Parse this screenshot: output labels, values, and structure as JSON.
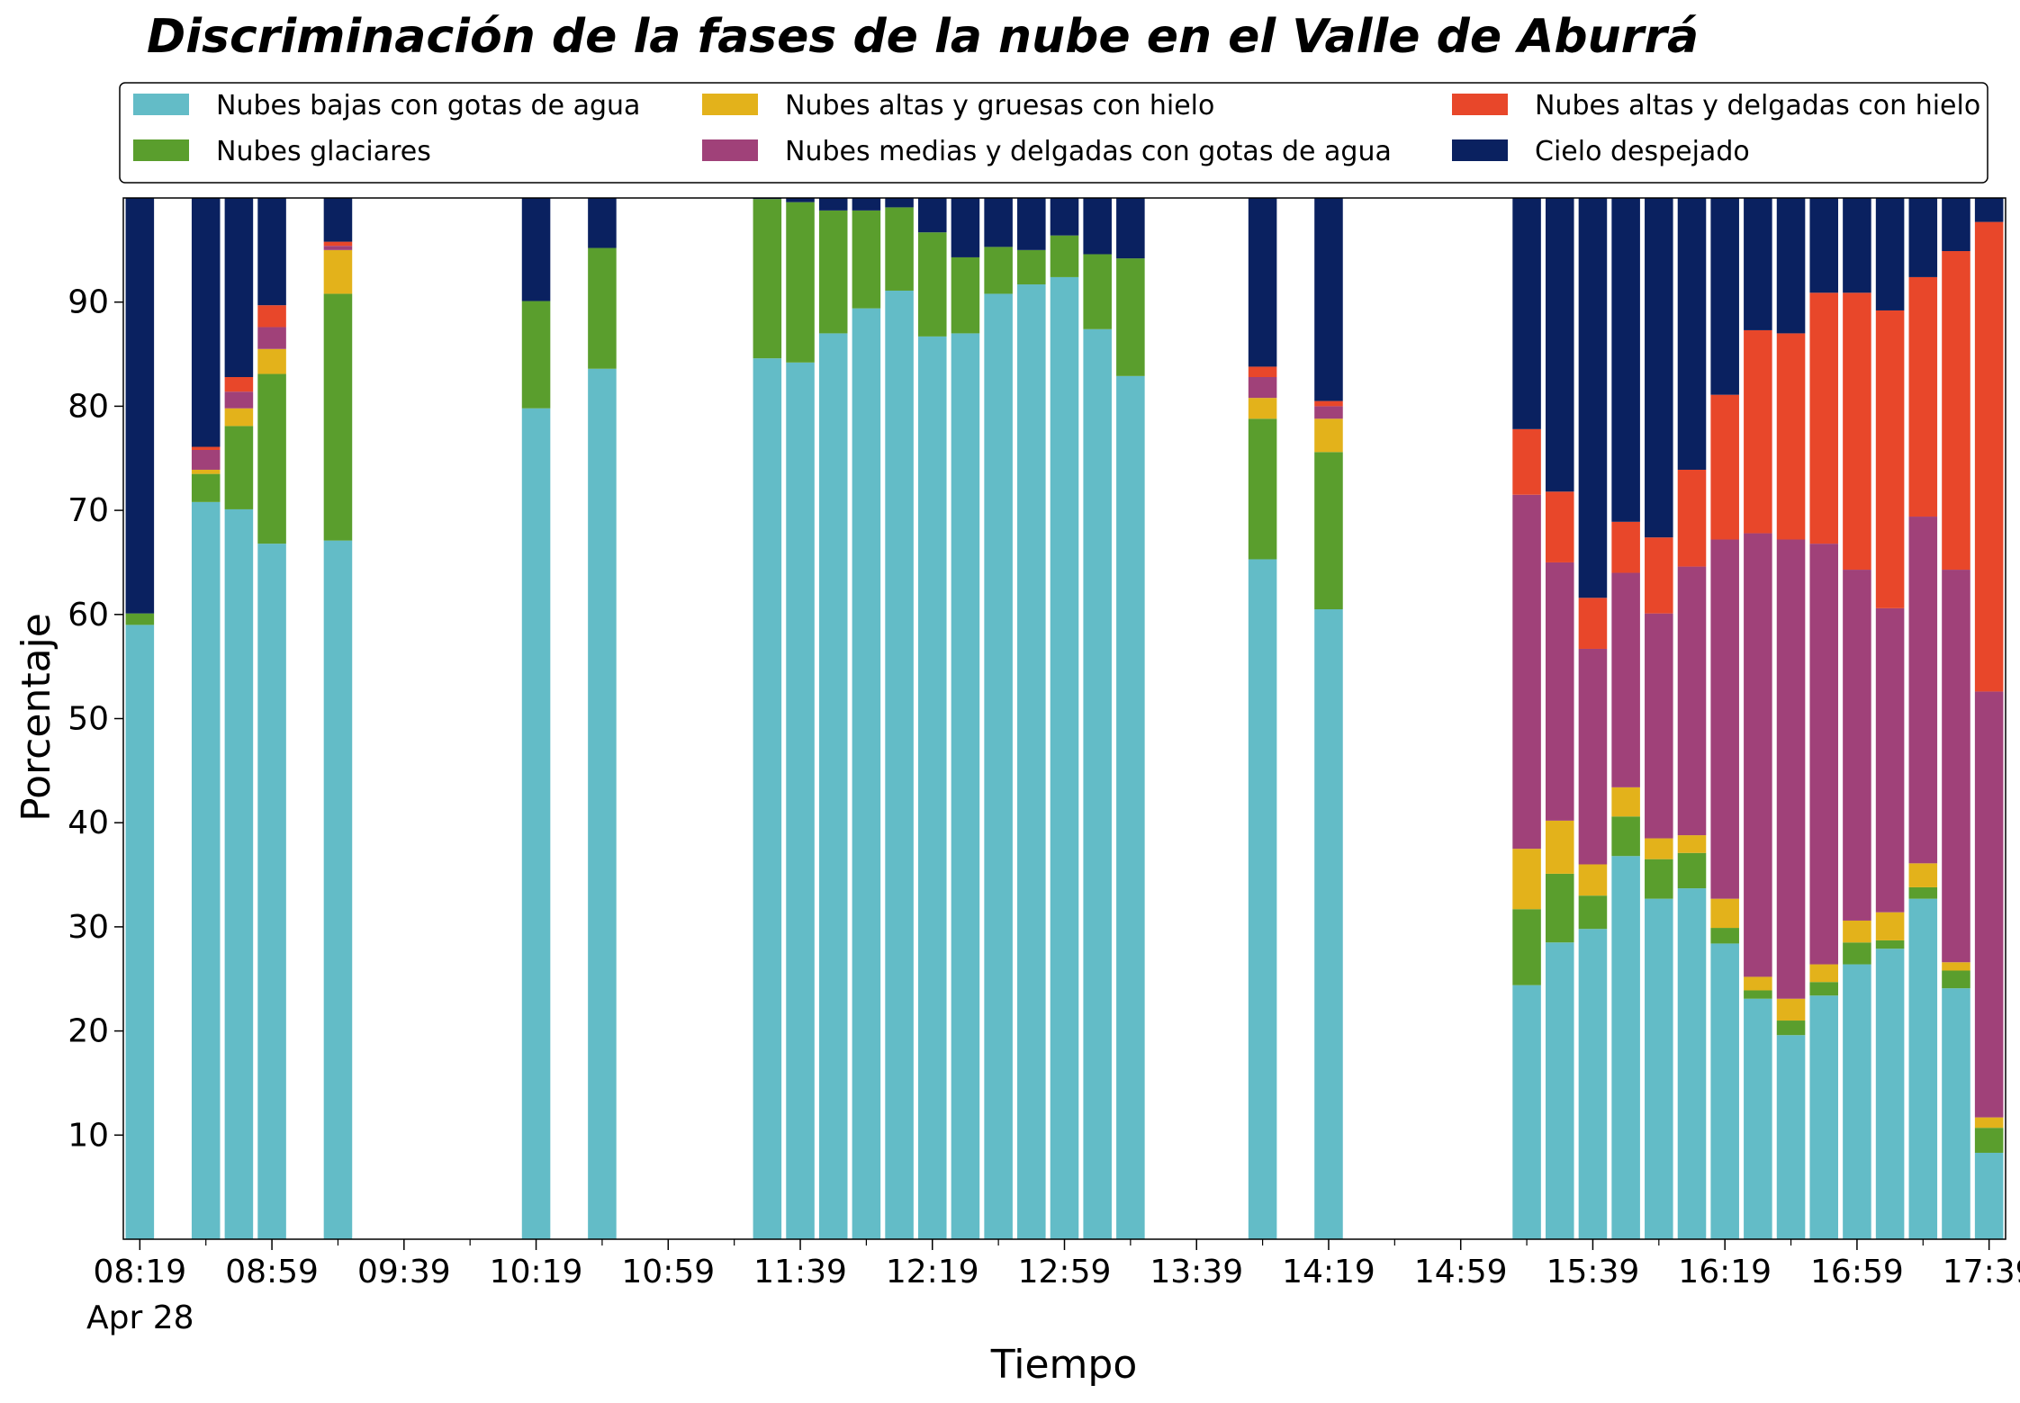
{
  "chart_data": {
    "type": "bar",
    "stacked": true,
    "title": "Discriminación de la fases de la nube en el Valle de Aburrá",
    "xlabel": "Tiempo",
    "ylabel": "Porcentaje",
    "ylim": [
      0,
      100
    ],
    "yticks": [
      10,
      20,
      30,
      40,
      50,
      60,
      70,
      80,
      90
    ],
    "xlim_minutes_after_0819": [
      -5,
      565
    ],
    "xticks": [
      {
        "label": "08:19",
        "minutes": 0
      },
      {
        "label": "08:59",
        "minutes": 40
      },
      {
        "label": "09:39",
        "minutes": 80
      },
      {
        "label": "10:19",
        "minutes": 120
      },
      {
        "label": "10:59",
        "minutes": 160
      },
      {
        "label": "11:39",
        "minutes": 200
      },
      {
        "label": "12:19",
        "minutes": 240
      },
      {
        "label": "12:59",
        "minutes": 280
      },
      {
        "label": "13:39",
        "minutes": 320
      },
      {
        "label": "14:19",
        "minutes": 360
      },
      {
        "label": "14:59",
        "minutes": 400
      },
      {
        "label": "15:39",
        "minutes": 440
      },
      {
        "label": "16:19",
        "minutes": 480
      },
      {
        "label": "16:59",
        "minutes": 520
      },
      {
        "label": "17:39",
        "minutes": 560
      }
    ],
    "date_label": "Apr 28",
    "grid": false,
    "legend_position": "top",
    "series": [
      {
        "name": "Nubes bajas con gotas de agua",
        "color": "#63bcc7",
        "values": [
          59,
          70.8,
          70.1,
          66.8,
          67.1,
          79.8,
          83.6,
          84.6,
          84.2,
          87,
          89.4,
          91.1,
          86.7,
          87,
          90.8,
          91.7,
          92.4,
          87.4,
          82.9,
          65.3,
          60.5,
          24.4,
          28.5,
          29.8,
          36.8,
          32.7,
          33.7,
          28.4,
          23.1,
          19.6,
          23.4,
          26.4,
          27.9,
          32.7,
          24.1,
          8.3
        ]
      },
      {
        "name": "Nubes glaciares",
        "color": "#5a9e2d",
        "values": [
          1.1,
          2.7,
          8,
          16.3,
          23.7,
          10.3,
          11.6,
          15.3,
          15.4,
          11.8,
          9.4,
          8,
          10,
          7.3,
          4.5,
          3.3,
          4,
          7.2,
          11.3,
          13.5,
          15.1,
          7.3,
          6.6,
          3.2,
          3.8,
          3.8,
          3.4,
          1.5,
          0.8,
          1.4,
          1.3,
          2.1,
          0.8,
          1.1,
          1.7,
          2.4
        ]
      },
      {
        "name": "Nubes altas y gruesas con hielo",
        "color": "#e3b21b",
        "values": [
          0,
          0.4,
          1.7,
          2.4,
          4.2,
          0,
          0,
          0,
          0,
          0,
          0,
          0,
          0,
          0,
          0,
          0,
          0,
          0,
          0,
          2,
          3.2,
          5.8,
          5.1,
          3,
          2.8,
          2,
          1.7,
          2.8,
          1.3,
          2.1,
          1.7,
          2.1,
          2.7,
          2.3,
          0.8,
          1
        ]
      },
      {
        "name": "Nubes medias y delgadas con gotas de agua",
        "color": "#a04179",
        "values": [
          0,
          1.9,
          1.6,
          2.1,
          0.4,
          0,
          0,
          0,
          0,
          0,
          0,
          0,
          0,
          0,
          0,
          0,
          0,
          0,
          0,
          2,
          1.2,
          34,
          24.8,
          20.7,
          20.6,
          21.6,
          25.8,
          34.5,
          42.6,
          44.1,
          40.4,
          33.7,
          29.2,
          33.3,
          37.7,
          40.9
        ]
      },
      {
        "name": "Nubes altas y delgadas con hielo",
        "color": "#e8472a",
        "values": [
          0,
          0.3,
          1.4,
          2.1,
          0.4,
          0,
          0,
          0,
          0,
          0,
          0,
          0,
          0,
          0,
          0,
          0,
          0,
          0,
          0,
          1,
          0.5,
          6.3,
          6.8,
          4.9,
          4.9,
          7.3,
          9.3,
          13.9,
          19.5,
          19.8,
          24.1,
          26.6,
          28.6,
          23,
          30.6,
          45.1
        ]
      },
      {
        "name": "Cielo despejado",
        "color": "#0a2160",
        "values": [
          39.9,
          23.9,
          17.2,
          10.3,
          4.2,
          9.9,
          4.8,
          0.1,
          0.4,
          1.2,
          1.2,
          0.9,
          3.3,
          5.7,
          4.7,
          5,
          3.6,
          5.4,
          5.8,
          16.2,
          19.5,
          22.2,
          28.2,
          38.4,
          31.1,
          32.6,
          26.1,
          18.9,
          12.7,
          13,
          9.1,
          9.1,
          10.8,
          7.6,
          5.1,
          2.3
        ]
      }
    ],
    "bars_minutes_after_0819": [
      0,
      20,
      30,
      40,
      60,
      120,
      140,
      190,
      200,
      210,
      220,
      230,
      240,
      250,
      260,
      270,
      280,
      290,
      300,
      340,
      360,
      420,
      430,
      440,
      450,
      460,
      470,
      480,
      490,
      500,
      510,
      520,
      530,
      540,
      550,
      560
    ]
  }
}
